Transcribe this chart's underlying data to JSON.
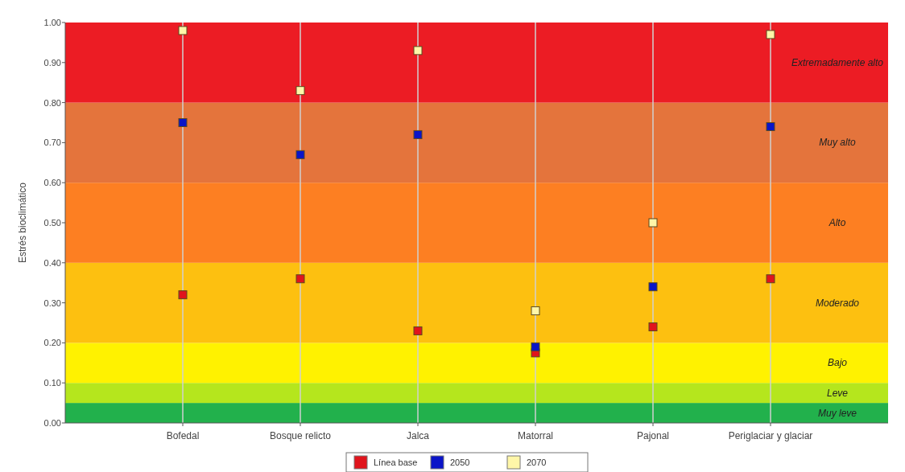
{
  "chart_data": {
    "type": "scatter",
    "ylabel": "Estrés bioclimático",
    "categories": [
      "Bofedal",
      "Bosque relicto",
      "Jalca",
      "Matorral",
      "Pajonal",
      "Periglaciar y glaciar"
    ],
    "series": [
      {
        "name": "Línea base",
        "color": "#e0141c",
        "values": [
          0.32,
          0.36,
          0.23,
          0.175,
          0.24,
          0.36
        ]
      },
      {
        "name": "2050",
        "color": "#0a14c8",
        "values": [
          0.75,
          0.67,
          0.72,
          0.19,
          0.34,
          0.74
        ]
      },
      {
        "name": "2070",
        "color": "#fff6a8",
        "values": [
          0.98,
          0.83,
          0.93,
          0.28,
          0.5,
          0.97
        ]
      }
    ],
    "ylim": [
      0,
      1
    ],
    "yticks": [
      {
        "value": 0,
        "label": "0.00"
      },
      {
        "value": 0.1,
        "label": "0.10"
      },
      {
        "value": 0.2,
        "label": "0.20"
      },
      {
        "value": 0.3,
        "label": "0.30"
      },
      {
        "value": 0.4,
        "label": "0.40"
      },
      {
        "value": 0.5,
        "label": "0.50"
      },
      {
        "value": 0.6,
        "label": "0.60"
      },
      {
        "value": 0.7,
        "label": "0.70"
      },
      {
        "value": 0.8,
        "label": "0.80"
      },
      {
        "value": 0.9,
        "label": "0.90"
      },
      {
        "value": 1,
        "label": "1.00"
      }
    ],
    "bands": [
      {
        "axis": "y",
        "from": 0,
        "to": 0.05,
        "label": "Muy leve",
        "color": "#22b14c"
      },
      {
        "axis": "y",
        "from": 0.05,
        "to": 0.1,
        "label": "Leve",
        "color": "#b5e61d"
      },
      {
        "axis": "y",
        "from": 0.1,
        "to": 0.2,
        "label": "Bajo",
        "color": "#fff200"
      },
      {
        "axis": "y",
        "from": 0.2,
        "to": 0.4,
        "label": "Moderado",
        "color": "#fdc010"
      },
      {
        "axis": "y",
        "from": 0.4,
        "to": 0.6,
        "label": "Alto",
        "color": "#fd7f22"
      },
      {
        "axis": "y",
        "from": 0.6,
        "to": 0.8,
        "label": "Muy alto",
        "color": "#e4743c"
      },
      {
        "axis": "y",
        "from": 0.8,
        "to": 1,
        "label": "Extremadamente alto",
        "color": "#ec1c24"
      }
    ],
    "grid": "x",
    "legend": "bottom",
    "marker": "square"
  }
}
